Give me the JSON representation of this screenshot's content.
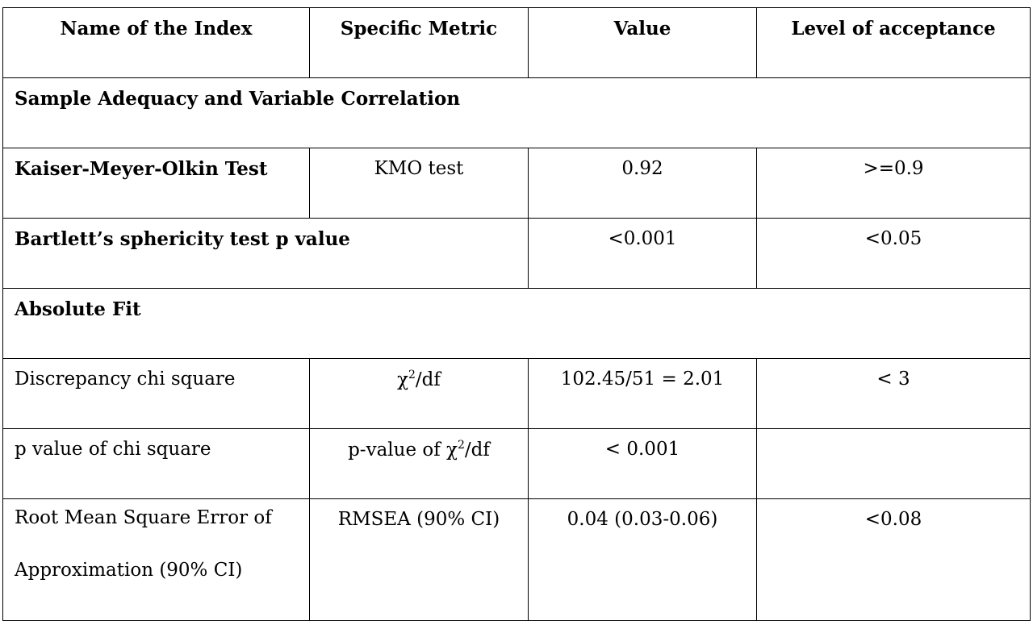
{
  "headers": [
    "Name of the Index",
    "Specific Metric",
    "Value",
    "Level of acceptance"
  ],
  "section1": "Sample Adequacy and Variable Correlation",
  "kmo": {
    "name": "Kaiser-Meyer-Olkin Test",
    "metric": "KMO test",
    "value": "0.92",
    "acceptance": ">=0.9"
  },
  "bartlett": {
    "name": "Bartlett’s sphericity test p value",
    "value": "<0.001",
    "acceptance": "<0.05"
  },
  "section2": "Absolute Fit",
  "chi": {
    "name": "Discrepancy chi square",
    "metric_base": "χ",
    "metric_sup": "2",
    "metric_tail": "/df",
    "value": "102.45/51 = 2.01",
    "acceptance": "< 3"
  },
  "pchi": {
    "name": "p value of chi square",
    "metric_base": "p-value of χ",
    "metric_sup": "2",
    "metric_tail": "/df",
    "value": "< 0.001",
    "acceptance": ""
  },
  "rmsea": {
    "name_line1": "Root Mean Square Error of",
    "name_line2": "Approximation (90% CI)",
    "metric": "RMSEA (90% CI)",
    "value": "0.04 (0.03-0.06)",
    "acceptance": "<0.08"
  }
}
